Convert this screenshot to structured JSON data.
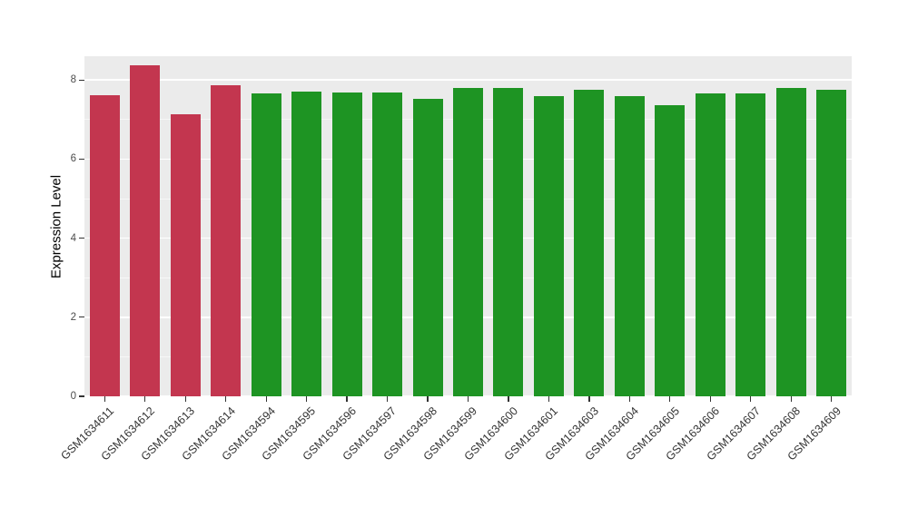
{
  "chart_data": {
    "type": "bar",
    "title": "",
    "xlabel": "",
    "ylabel": "Expression Level",
    "ylim": [
      0,
      8.6
    ],
    "yticks": [
      0,
      2,
      4,
      6,
      8
    ],
    "ytick_labels": [
      "0",
      "2",
      "4",
      "6",
      "8"
    ],
    "minor_yticks": [
      1,
      3,
      5,
      7
    ],
    "grid": true,
    "legend": "none",
    "panel_bg": "#EBEBEB",
    "grid_color": "#FFFFFF",
    "categories": [
      "GSM1634611",
      "GSM1634612",
      "GSM1634613",
      "GSM1634614",
      "GSM1634594",
      "GSM1634595",
      "GSM1634596",
      "GSM1634597",
      "GSM1634598",
      "GSM1634599",
      "GSM1634600",
      "GSM1634601",
      "GSM1634603",
      "GSM1634604",
      "GSM1634605",
      "GSM1634606",
      "GSM1634607",
      "GSM1634608",
      "GSM1634609"
    ],
    "values": [
      7.62,
      8.38,
      7.13,
      7.87,
      7.65,
      7.7,
      7.68,
      7.68,
      7.53,
      7.8,
      7.8,
      7.6,
      7.75,
      7.58,
      7.37,
      7.65,
      7.67,
      7.8,
      7.75
    ],
    "bar_colors": [
      "#C3364F",
      "#C3364F",
      "#C3364F",
      "#C3364F",
      "#1E9423",
      "#1E9423",
      "#1E9423",
      "#1E9423",
      "#1E9423",
      "#1E9423",
      "#1E9423",
      "#1E9423",
      "#1E9423",
      "#1E9423",
      "#1E9423",
      "#1E9423",
      "#1E9423",
      "#1E9423",
      "#1E9423"
    ],
    "palette": {
      "group_red": "#C3364F",
      "group_green": "#1E9423"
    }
  }
}
